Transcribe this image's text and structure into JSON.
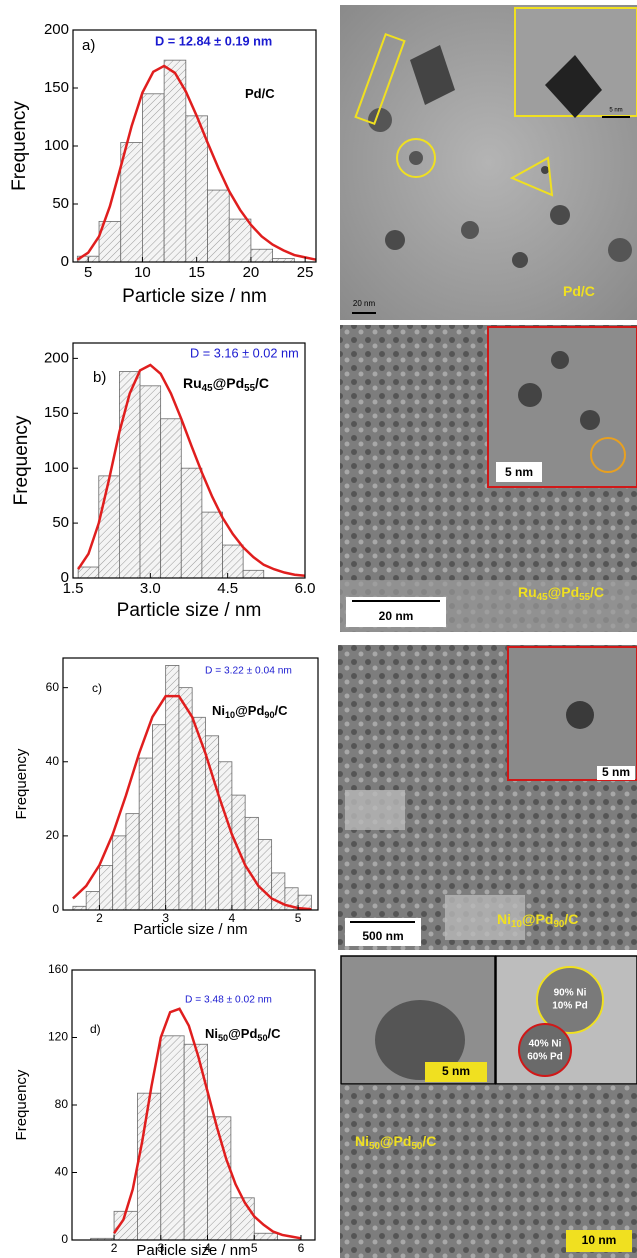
{
  "chart_data": [
    {
      "type": "histogram",
      "panel": "a)",
      "annotation": "D = 12.84 ± 0.19 nm",
      "annotation_color": "#1a1ad0",
      "sample": [
        "Pd/C"
      ],
      "xlabel": "Particle size / nm",
      "ylabel": "Frequency",
      "bins": [
        4,
        6,
        8,
        10,
        12,
        14,
        16,
        18,
        20,
        22,
        24
      ],
      "values": [
        5,
        35,
        103,
        145,
        174,
        126,
        62,
        37,
        11,
        3
      ],
      "color": "#ececec",
      "fit": {
        "color": "#e01e1e",
        "x": [
          4,
          5,
          6,
          7,
          8,
          9,
          10,
          11,
          12,
          13,
          14,
          15,
          16,
          17,
          18,
          19,
          20,
          21,
          22,
          23,
          24,
          25,
          26
        ],
        "values": [
          2,
          8,
          22,
          48,
          82,
          117,
          146,
          164,
          169,
          163,
          147,
          126,
          103,
          81,
          61,
          45,
          32,
          22,
          15,
          10,
          6,
          4,
          2
        ]
      },
      "xlim": [
        3.6,
        26
      ],
      "xticks": [
        5,
        10,
        15,
        20,
        25
      ],
      "ylim": [
        0,
        200
      ],
      "yticks": [
        0,
        50,
        100,
        150,
        200
      ]
    },
    {
      "type": "histogram",
      "panel": "b)",
      "annotation": "D = 3.16 ± 0.02 nm",
      "annotation_color": "#1a1ad0",
      "sample": [
        "Ru",
        "45",
        "@Pd",
        "55",
        "/C"
      ],
      "xlabel": "Particle size / nm",
      "ylabel": "Frequency",
      "bins": [
        1.6,
        2.0,
        2.4,
        2.8,
        3.2,
        3.6,
        4.0,
        4.4,
        4.8,
        5.2
      ],
      "values": [
        10,
        93,
        188,
        175,
        145,
        100,
        60,
        30,
        7
      ],
      "color": "#ececec",
      "fit": {
        "color": "#e01e1e",
        "x": [
          1.6,
          1.8,
          2.0,
          2.2,
          2.4,
          2.6,
          2.8,
          3.0,
          3.2,
          3.4,
          3.6,
          3.8,
          4.0,
          4.2,
          4.4,
          4.6,
          4.8,
          5.0,
          5.2,
          5.4,
          5.6,
          5.8,
          6.0
        ],
        "values": [
          8,
          22,
          50,
          90,
          133,
          168,
          189,
          194,
          186,
          168,
          145,
          120,
          96,
          74,
          55,
          40,
          28,
          19,
          12,
          8,
          5,
          3,
          2
        ]
      },
      "xlim": [
        1.5,
        6.0
      ],
      "xticks": [
        1.5,
        {
          "value": 3.0,
          "label": "3.0"
        },
        4.5,
        {
          "value": 6.0,
          "label": "6.0"
        }
      ],
      "ylim": [
        0,
        214
      ],
      "yticks": [
        0,
        50,
        100,
        150,
        200
      ]
    },
    {
      "type": "histogram",
      "panel": "c)",
      "annotation": "D = 3.22 ± 0.04 nm",
      "annotation_color": "#1a1ad0",
      "sample": [
        "Ni",
        "10",
        "@Pd",
        "90",
        "/C"
      ],
      "xlabel": "Particle size / nm",
      "ylabel": "Frequency",
      "bins": [
        1.6,
        1.8,
        2.0,
        2.2,
        2.4,
        2.6,
        2.8,
        3.0,
        3.2,
        3.4,
        3.6,
        3.8,
        4.0,
        4.2,
        4.4,
        4.6,
        4.8,
        5.0,
        5.2
      ],
      "values": [
        1,
        5,
        12,
        20,
        26,
        41,
        50,
        66,
        60,
        52,
        47,
        40,
        31,
        25,
        19,
        10,
        6,
        4
      ],
      "color": "#ececec",
      "fit": {
        "color": "#e01e1e",
        "x": [
          1.6,
          1.8,
          2.0,
          2.2,
          2.4,
          2.6,
          2.8,
          3.0,
          3.2,
          3.4,
          3.6,
          3.8,
          4.0,
          4.2,
          4.4,
          4.6,
          4.8,
          5.0,
          5.2
        ],
        "values": [
          3.1,
          6.5,
          12.1,
          20.4,
          30.9,
          42.3,
          52.1,
          57.7,
          57.7,
          52.1,
          42.3,
          30.9,
          20.4,
          12.1,
          6.5,
          3.1,
          1.4,
          0.5,
          0.2
        ]
      },
      "xlim": [
        1.45,
        5.3
      ],
      "xticks": [
        2,
        3,
        4,
        5
      ],
      "ylim": [
        0,
        68
      ],
      "yticks": [
        0,
        20,
        40,
        60
      ]
    },
    {
      "type": "histogram",
      "panel": "d)",
      "annotation": "D = 3.48 ± 0.02 nm",
      "annotation_color": "#1a1ad0",
      "sample": [
        "Ni",
        "50",
        "@Pd",
        "50",
        "/C"
      ],
      "xlabel": "Particle size / nm",
      "ylabel": "Frequency",
      "bins": [
        1.5,
        2.0,
        2.5,
        3.0,
        3.5,
        4.0,
        4.5,
        5.0,
        5.5
      ],
      "values": [
        1,
        17,
        87,
        121,
        116,
        73,
        25,
        4
      ],
      "color": "#ececec",
      "fit": {
        "color": "#e01e1e",
        "x": [
          2.0,
          2.2,
          2.4,
          2.6,
          2.8,
          3.0,
          3.2,
          3.4,
          3.6,
          3.8,
          4.0,
          4.2,
          4.4,
          4.6,
          4.8,
          5.0,
          5.2,
          5.4,
          5.6,
          5.8,
          6.0
        ],
        "values": [
          4,
          12,
          30,
          58,
          91,
          120,
          135,
          137,
          127,
          109,
          88,
          67,
          48,
          33,
          22,
          14,
          9,
          5,
          3,
          2,
          1
        ]
      },
      "xlim": [
        1.1,
        6.3
      ],
      "xticks": [
        2,
        3,
        4,
        5,
        6
      ],
      "ylim": [
        0,
        160
      ],
      "yticks": [
        0,
        40,
        80,
        120,
        160
      ]
    }
  ],
  "micrographs": [
    {
      "sample": [
        "Pd/C"
      ],
      "scale": "20 nm",
      "inset_scale": "5 nm"
    },
    {
      "sample": [
        "Ru",
        "45",
        "@Pd",
        "55",
        "/C"
      ],
      "scale": "20 nm",
      "inset_scale": "5 nm"
    },
    {
      "sample": [
        "Ni",
        "10",
        "@Pd",
        "90",
        "/C"
      ],
      "scale": "500 nm",
      "inset_scale": "5 nm"
    },
    {
      "sample": [
        "Ni",
        "50",
        "@Pd",
        "50",
        "/C"
      ],
      "scale": "10 nm",
      "inset_scale": "5 nm",
      "regions": [
        [
          "90% Ni",
          "10% Pd"
        ],
        [
          "40% Ni",
          "60% Pd"
        ]
      ]
    }
  ]
}
